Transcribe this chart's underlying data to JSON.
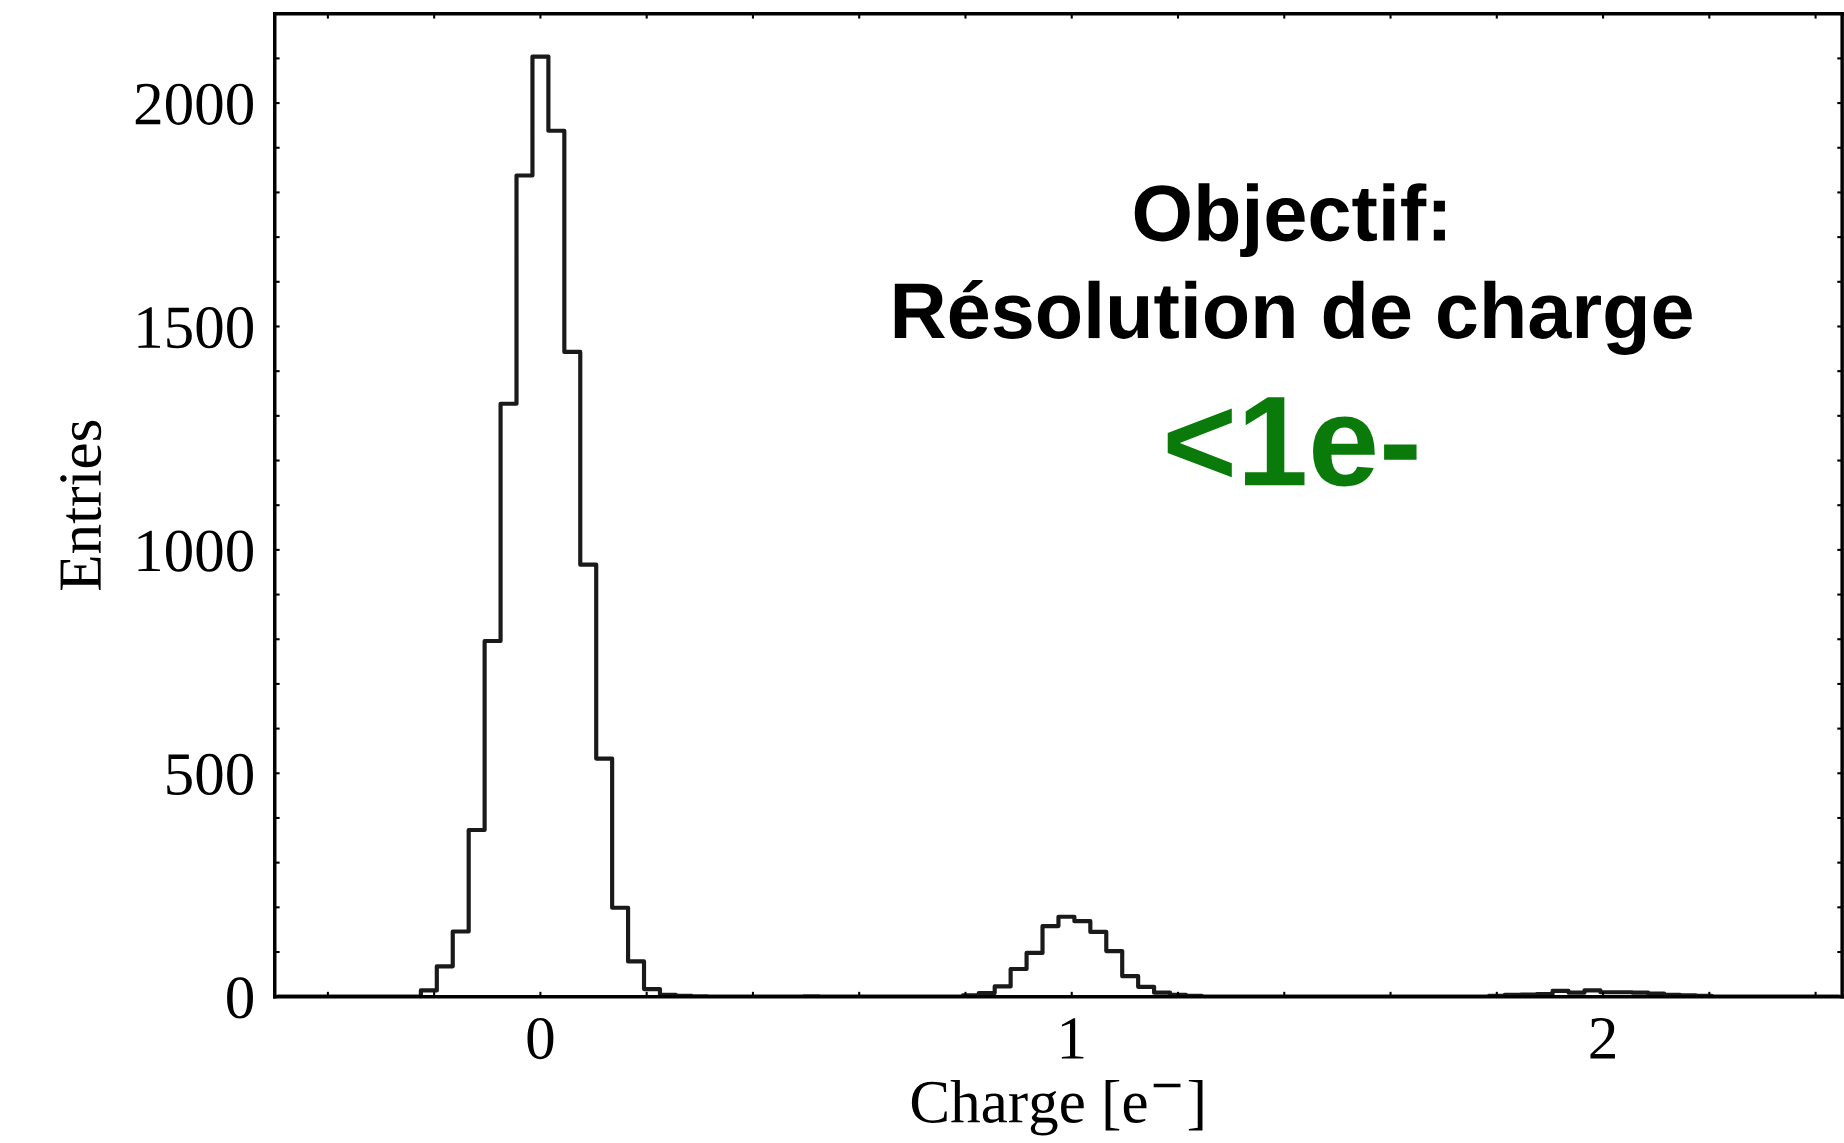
{
  "chart_data": {
    "type": "histogram",
    "xlabel": "Charge [e$^{−}$]",
    "ylabel": "Entries",
    "annotations": [
      "Objectif:",
      "Résolution de charge",
      "<1e-"
    ],
    "color": "#1a1a1a",
    "bins": [
      -0.495,
      -0.465,
      -0.435,
      -0.405,
      -0.375,
      -0.345,
      -0.315,
      -0.285,
      -0.255,
      -0.225,
      -0.195,
      -0.165,
      -0.135,
      -0.105,
      -0.075,
      -0.045,
      -0.015,
      0.015,
      0.045,
      0.075,
      0.105,
      0.135,
      0.165,
      0.195,
      0.225,
      0.255,
      0.285,
      0.315,
      0.345,
      0.375,
      0.405,
      0.435,
      0.465,
      0.495,
      0.525,
      0.555,
      0.585,
      0.615,
      0.645,
      0.675,
      0.705,
      0.735,
      0.765,
      0.795,
      0.825,
      0.855,
      0.885,
      0.915,
      0.945,
      0.975,
      1.005,
      1.035,
      1.065,
      1.095,
      1.125,
      1.155,
      1.185,
      1.215,
      1.245,
      1.275,
      1.305,
      1.335,
      1.365,
      1.395,
      1.425,
      1.455,
      1.485,
      1.515,
      1.545,
      1.575,
      1.605,
      1.635,
      1.665,
      1.695,
      1.725,
      1.755,
      1.785,
      1.815,
      1.845,
      1.875,
      1.905,
      1.935,
      1.965,
      1.995,
      2.025,
      2.055,
      2.085,
      2.115,
      2.145,
      2.175,
      2.205,
      2.235,
      2.265,
      2.295,
      2.325,
      2.355,
      2.385,
      2.415,
      2.445
    ],
    "values": [
      0,
      0,
      0,
      0,
      0,
      0,
      0,
      0,
      0,
      14,
      68,
      146,
      373,
      796,
      1327,
      1838,
      2104,
      1938,
      1443,
      967,
      533,
      199,
      79,
      17,
      4,
      2,
      1,
      0,
      0,
      0,
      0,
      0,
      0,
      1,
      0,
      0,
      0,
      0,
      0,
      0,
      0,
      0,
      0,
      3,
      8,
      23,
      62,
      98,
      158,
      179,
      169,
      145,
      102,
      46,
      22,
      9,
      4,
      2,
      0,
      0,
      0,
      0,
      0,
      0,
      0,
      0,
      0,
      0,
      0,
      0,
      0,
      0,
      0,
      0,
      0,
      0,
      2,
      4,
      5,
      6,
      13,
      9,
      14,
      10,
      10,
      9,
      7,
      4,
      3,
      2,
      0,
      0,
      0,
      0,
      0,
      0,
      0,
      0
    ],
    "xlim": [
      -0.5,
      2.45
    ],
    "xticks": [
      {
        "value": -0.4,
        "label": null
      },
      {
        "value": -0.2,
        "label": null
      },
      0,
      {
        "value": 0.2,
        "label": null
      },
      {
        "value": 0.4,
        "label": null
      },
      {
        "value": 0.6,
        "label": null
      },
      {
        "value": 0.8,
        "label": null
      },
      1,
      {
        "value": 1.2,
        "label": null
      },
      {
        "value": 1.4,
        "label": null
      },
      {
        "value": 1.6,
        "label": null
      },
      {
        "value": 1.8,
        "label": null
      },
      2,
      {
        "value": 2.2,
        "label": null
      },
      {
        "value": 2.4,
        "label": null
      }
    ],
    "ylim": [
      0,
      2200
    ],
    "yticks": [
      0,
      {
        "value": 100,
        "label": null
      },
      {
        "value": 200,
        "label": null
      },
      {
        "value": 300,
        "label": null
      },
      {
        "value": 400,
        "label": null
      },
      500,
      {
        "value": 600,
        "label": null
      },
      {
        "value": 700,
        "label": null
      },
      {
        "value": 800,
        "label": null
      },
      {
        "value": 900,
        "label": null
      },
      1000,
      {
        "value": 1100,
        "label": null
      },
      {
        "value": 1200,
        "label": null
      },
      {
        "value": 1300,
        "label": null
      },
      {
        "value": 1400,
        "label": null
      },
      1500,
      {
        "value": 1600,
        "label": null
      },
      {
        "value": 1700,
        "label": null
      },
      {
        "value": 1800,
        "label": null
      },
      {
        "value": 1900,
        "label": null
      },
      2000,
      {
        "value": 2100,
        "label": null
      },
      {
        "value": 2200,
        "label": null
      }
    ],
    "grid": false,
    "legend": false
  }
}
